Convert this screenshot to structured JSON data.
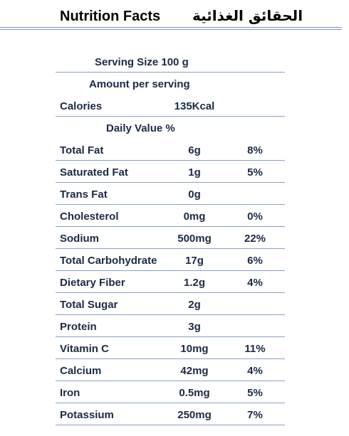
{
  "header": {
    "title_en": "Nutrition Facts",
    "title_ar": "الحقائق الغذائية"
  },
  "serving_size": "Serving Size 100 g",
  "amount_per_serving": "Amount per serving",
  "calories": {
    "name": "Calories",
    "amount": "135Kcal"
  },
  "daily_value_label": "Daily Value %",
  "nutrients": [
    {
      "name": "Total Fat",
      "amount": "6g",
      "dv": "8%"
    },
    {
      "name": "Saturated Fat",
      "amount": "1g",
      "dv": "5%"
    },
    {
      "name": "Trans Fat",
      "amount": "0g",
      "dv": ""
    },
    {
      "name": "Cholesterol",
      "amount": "0mg",
      "dv": "0%"
    },
    {
      "name": "Sodium",
      "amount": "500mg",
      "dv": "22%"
    },
    {
      "name": "Total Carbohydrate",
      "amount": "17g",
      "dv": "6%"
    },
    {
      "name": "Dietary Fiber",
      "amount": "1.2g",
      "dv": "4%"
    },
    {
      "name": "Total Sugar",
      "amount": "2g",
      "dv": ""
    },
    {
      "name": "Protein",
      "amount": "3g",
      "dv": ""
    },
    {
      "name": "Vitamin C",
      "amount": "10mg",
      "dv": "11%"
    },
    {
      "name": "Calcium",
      "amount": "42mg",
      "dv": "4%"
    },
    {
      "name": "Iron",
      "amount": "0.5mg",
      "dv": "5%"
    },
    {
      "name": "Potassium",
      "amount": "250mg",
      "dv": "7%"
    }
  ]
}
